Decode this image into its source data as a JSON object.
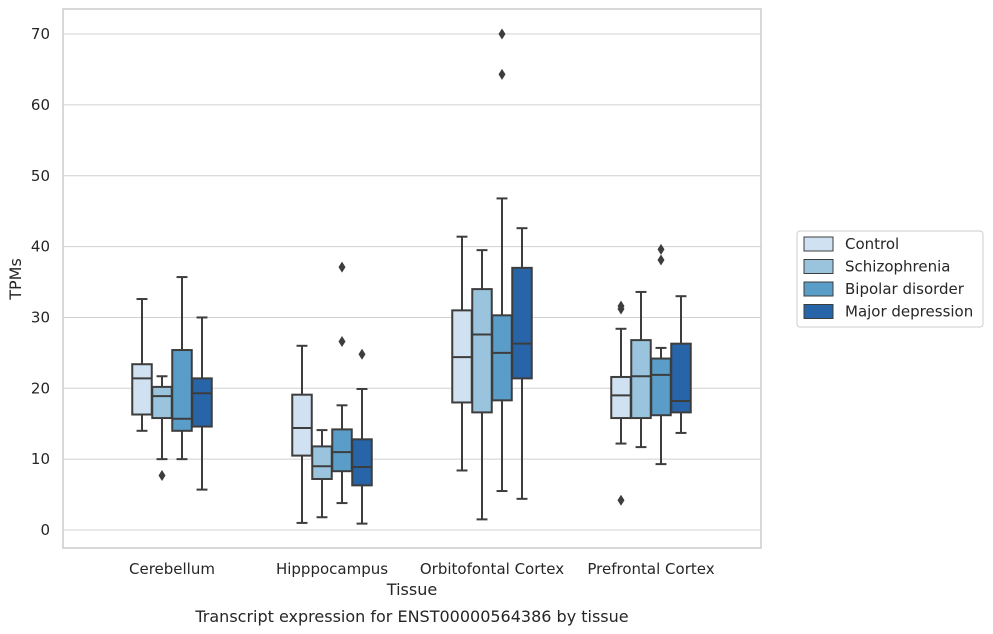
{
  "chart_data": {
    "type": "boxplot",
    "caption": "Transcript expression for ENST00000564386 by tissue",
    "xlabel": "Tissue",
    "ylabel": "TPMs",
    "ylim": [
      -2.5,
      73.5
    ],
    "yticks": [
      0,
      10,
      20,
      30,
      40,
      50,
      60,
      70
    ],
    "grid": "horizontal",
    "legend_position": "right",
    "categories": [
      "Cerebellum",
      "Hipppocampus",
      "Orbitofontal Cortex",
      "Prefrontal Cortex"
    ],
    "series": [
      {
        "name": "Control",
        "color": "#d0e1f2",
        "boxes": [
          {
            "whislo": 14.0,
            "q1": 16.3,
            "med": 21.4,
            "q3": 23.4,
            "whishi": 32.6,
            "fliers": []
          },
          {
            "whislo": 1.0,
            "q1": 10.5,
            "med": 14.4,
            "q3": 19.1,
            "whishi": 26.0,
            "fliers": []
          },
          {
            "whislo": 8.4,
            "q1": 18.0,
            "med": 24.4,
            "q3": 31.0,
            "whishi": 41.4,
            "fliers": []
          },
          {
            "whislo": 12.2,
            "q1": 15.8,
            "med": 19.0,
            "q3": 21.6,
            "whishi": 28.4,
            "fliers": [
              31.2,
              31.6,
              4.2
            ]
          }
        ]
      },
      {
        "name": "Schizophrenia",
        "color": "#9ac4de",
        "boxes": [
          {
            "whislo": 10.0,
            "q1": 15.8,
            "med": 18.9,
            "q3": 20.2,
            "whishi": 21.7,
            "fliers": [
              7.7
            ]
          },
          {
            "whislo": 1.8,
            "q1": 7.2,
            "med": 9.0,
            "q3": 11.8,
            "whishi": 14.1,
            "fliers": []
          },
          {
            "whislo": 1.5,
            "q1": 16.6,
            "med": 27.6,
            "q3": 34.0,
            "whishi": 39.5,
            "fliers": []
          },
          {
            "whislo": 11.7,
            "q1": 15.8,
            "med": 21.7,
            "q3": 26.8,
            "whishi": 33.6,
            "fliers": []
          }
        ]
      },
      {
        "name": "Bipolar disorder",
        "color": "#5b9dc9",
        "boxes": [
          {
            "whislo": 10.0,
            "q1": 14.0,
            "med": 15.7,
            "q3": 25.4,
            "whishi": 35.7,
            "fliers": []
          },
          {
            "whislo": 3.8,
            "q1": 8.3,
            "med": 11.0,
            "q3": 14.2,
            "whishi": 17.6,
            "fliers": [
              37.1,
              26.6
            ]
          },
          {
            "whislo": 5.5,
            "q1": 18.3,
            "med": 25.0,
            "q3": 30.3,
            "whishi": 46.8,
            "fliers": [
              64.3,
              70.0
            ]
          },
          {
            "whislo": 9.3,
            "q1": 16.2,
            "med": 21.9,
            "q3": 24.2,
            "whishi": 25.7,
            "fliers": [
              39.6,
              38.1
            ]
          }
        ]
      },
      {
        "name": "Major depression",
        "color": "#2765a8",
        "boxes": [
          {
            "whislo": 5.7,
            "q1": 14.6,
            "med": 19.3,
            "q3": 21.4,
            "whishi": 30.0,
            "fliers": []
          },
          {
            "whislo": 0.9,
            "q1": 6.3,
            "med": 8.9,
            "q3": 12.8,
            "whishi": 19.9,
            "fliers": [
              24.8
            ]
          },
          {
            "whislo": 4.4,
            "q1": 21.4,
            "med": 26.3,
            "q3": 37.0,
            "whishi": 42.6,
            "fliers": []
          },
          {
            "whislo": 13.7,
            "q1": 16.6,
            "med": 18.2,
            "q3": 26.3,
            "whishi": 33.0,
            "fliers": []
          }
        ]
      }
    ]
  }
}
